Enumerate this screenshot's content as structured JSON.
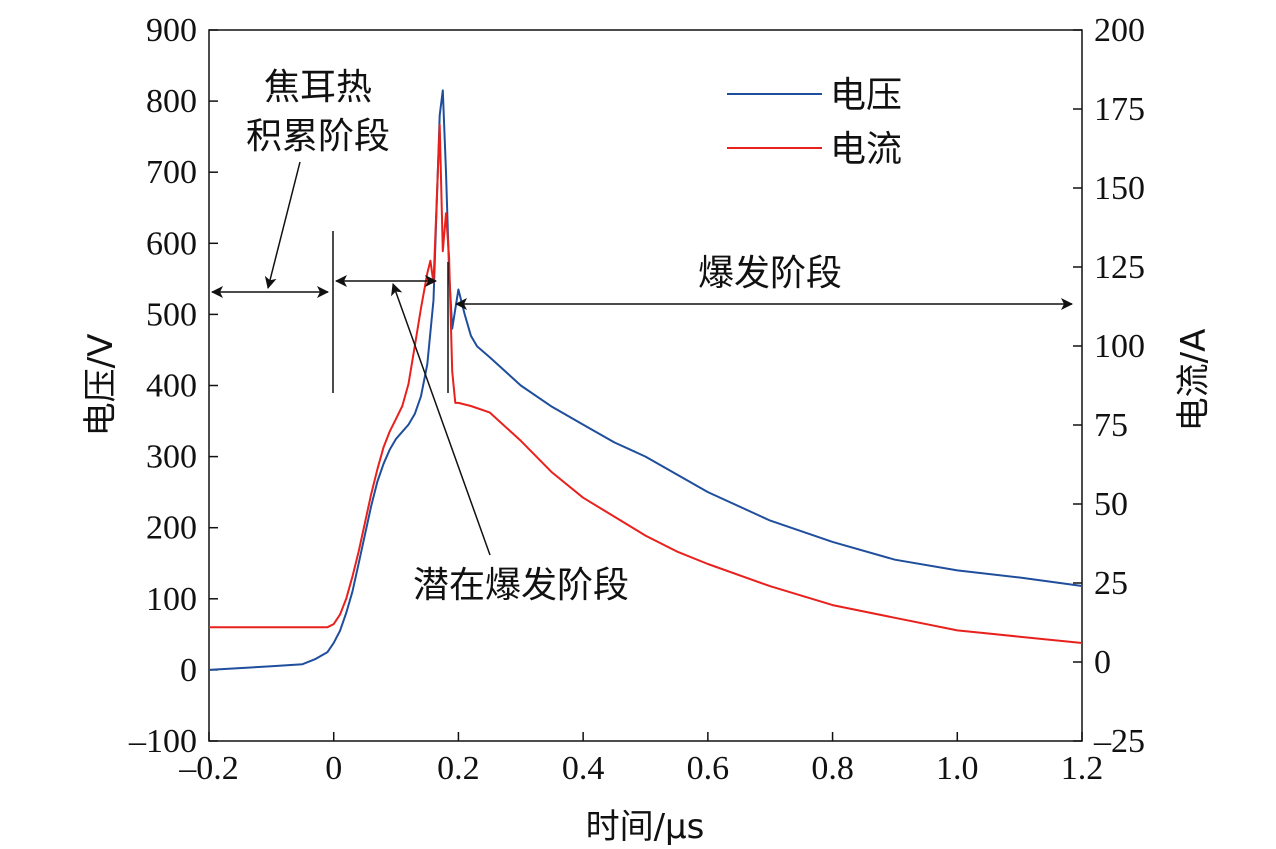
{
  "chart_data": {
    "type": "line",
    "xlabel": "时间/μs",
    "ylabel_left": "电压/V",
    "ylabel_right": "电流/A",
    "xlim": [
      -0.2,
      1.2
    ],
    "ylim_left": [
      -100,
      900
    ],
    "ylim_right": [
      -25,
      200
    ],
    "x_ticks": [
      -0.2,
      0,
      0.2,
      0.4,
      0.6,
      0.8,
      1.0,
      1.2
    ],
    "x_tick_labels": [
      "–0.2",
      "0",
      "0.2",
      "0.4",
      "0.6",
      "0.8",
      "1.0",
      "1.2"
    ],
    "y_left_ticks": [
      -100,
      0,
      100,
      200,
      300,
      400,
      500,
      600,
      700,
      800,
      900
    ],
    "y_left_tick_labels": [
      "–100",
      "0",
      "100",
      "200",
      "300",
      "400",
      "500",
      "600",
      "700",
      "800",
      "900"
    ],
    "y_right_ticks": [
      -25,
      0,
      25,
      50,
      75,
      100,
      125,
      150,
      175,
      200
    ],
    "y_right_tick_labels": [
      "–25",
      "0",
      "25",
      "50",
      "75",
      "100",
      "125",
      "150",
      "175",
      "200"
    ],
    "grid": false,
    "legend_position": "top-right",
    "series": [
      {
        "name": "电压",
        "axis": "left",
        "color": "#1f4e9c",
        "x": [
          -0.2,
          -0.1,
          -0.05,
          -0.03,
          -0.01,
          0.0,
          0.01,
          0.02,
          0.03,
          0.04,
          0.05,
          0.06,
          0.07,
          0.08,
          0.09,
          0.1,
          0.11,
          0.12,
          0.13,
          0.14,
          0.15,
          0.16,
          0.165,
          0.17,
          0.175,
          0.18,
          0.185,
          0.19,
          0.2,
          0.21,
          0.22,
          0.23,
          0.25,
          0.3,
          0.35,
          0.4,
          0.45,
          0.5,
          0.55,
          0.6,
          0.7,
          0.8,
          0.9,
          1.0,
          1.1,
          1.2
        ],
        "y": [
          0,
          5,
          8,
          15,
          25,
          38,
          55,
          80,
          110,
          150,
          190,
          230,
          265,
          290,
          310,
          325,
          335,
          345,
          360,
          385,
          430,
          520,
          650,
          780,
          815,
          700,
          560,
          480,
          535,
          500,
          470,
          455,
          440,
          400,
          370,
          345,
          320,
          300,
          275,
          250,
          210,
          180,
          155,
          140,
          130,
          118
        ]
      },
      {
        "name": "电流",
        "axis": "right",
        "color": "#e8211d",
        "x": [
          -0.2,
          -0.1,
          -0.05,
          -0.01,
          0.0,
          0.01,
          0.02,
          0.03,
          0.04,
          0.05,
          0.06,
          0.07,
          0.08,
          0.09,
          0.1,
          0.11,
          0.12,
          0.13,
          0.14,
          0.15,
          0.155,
          0.16,
          0.165,
          0.17,
          0.175,
          0.18,
          0.185,
          0.19,
          0.195,
          0.2,
          0.22,
          0.25,
          0.3,
          0.35,
          0.4,
          0.45,
          0.5,
          0.55,
          0.6,
          0.7,
          0.8,
          0.9,
          1.0,
          1.1,
          1.2
        ],
        "y": [
          11,
          11,
          11,
          11,
          12,
          15,
          20,
          27,
          35,
          44,
          53,
          61,
          68,
          73,
          77,
          81,
          88,
          100,
          112,
          123,
          127,
          120,
          145,
          170,
          130,
          142,
          128,
          92,
          82,
          82,
          81,
          79,
          70,
          60,
          52,
          46,
          40,
          35,
          31,
          24,
          18,
          14,
          10,
          8,
          6
        ]
      }
    ],
    "annotations": [
      {
        "text_lines": [
          "焦耳热",
          "积累阶段"
        ]
      },
      {
        "text_lines": [
          "潜在爆发阶段"
        ]
      },
      {
        "text_lines": [
          "爆发阶段"
        ]
      }
    ]
  }
}
